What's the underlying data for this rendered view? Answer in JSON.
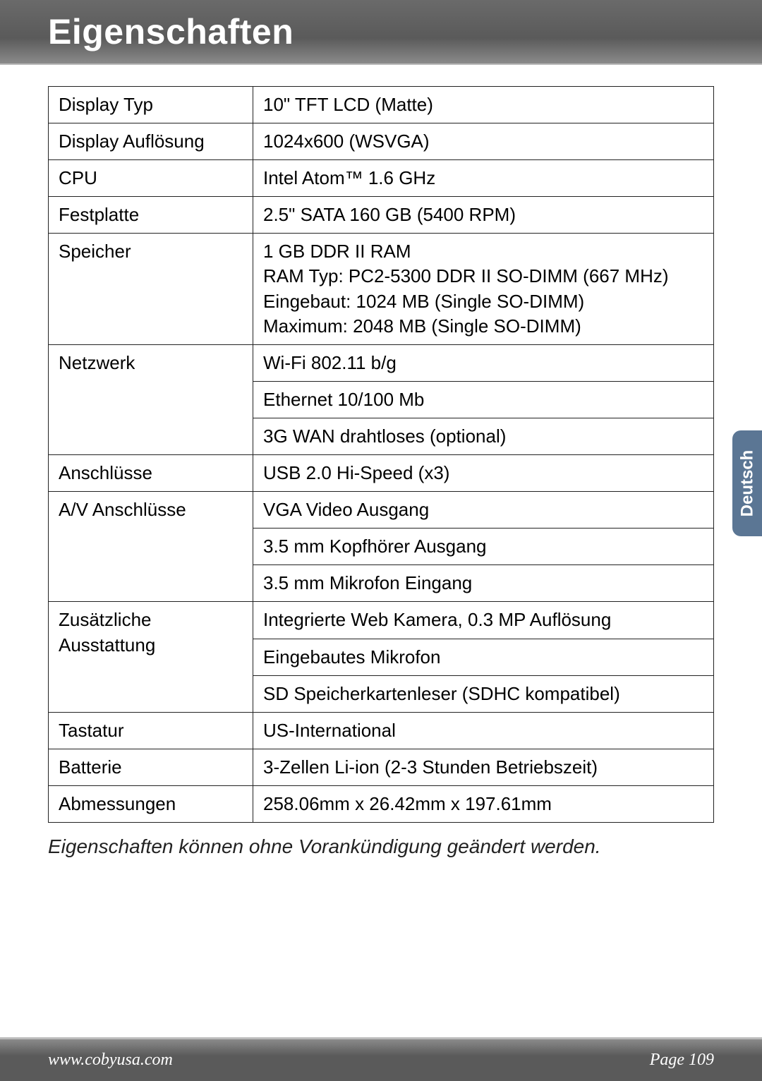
{
  "header": {
    "title": "Eigenschaften"
  },
  "sidetab": {
    "label": "Deutsch"
  },
  "spec": {
    "display_typ": {
      "label": "Display Typ",
      "value": "10\" TFT LCD (Matte)"
    },
    "display_aufl": {
      "label": "Display Auflösung",
      "value": "1024x600 (WSVGA)"
    },
    "cpu": {
      "label": "CPU",
      "value": "Intel Atom™ 1.6 GHz"
    },
    "festplatte": {
      "label": "Festplatte",
      "value": "2.5\" SATA 160 GB (5400 RPM)"
    },
    "speicher": {
      "label": "Speicher",
      "l1": "1 GB DDR II RAM",
      "l2": "RAM Typ: PC2-5300 DDR II SO-DIMM (667 MHz)",
      "l3": "Eingebaut: 1024 MB (Single SO-DIMM)",
      "l4": "Maximum: 2048 MB (Single SO-DIMM)"
    },
    "netzwerk": {
      "label": "Netzwerk",
      "v1": "Wi-Fi 802.11 b/g",
      "v2": "Ethernet 10/100 Mb",
      "v3": "3G WAN drahtloses (optional)"
    },
    "anschluesse": {
      "label": "Anschlüsse",
      "value": "USB 2.0 Hi-Speed (x3)"
    },
    "av": {
      "label": "A/V Anschlüsse",
      "v1": "VGA Video Ausgang",
      "v2": "3.5 mm Kopfhörer Ausgang",
      "v3": "3.5 mm Mikrofon Eingang"
    },
    "extras": {
      "label": "Zusätzliche Ausstattung",
      "v1": "Integrierte Web Kamera, 0.3 MP Auflösung",
      "v2": "Eingebautes Mikrofon",
      "v3": "SD Speicherkartenleser (SDHC kompatibel)"
    },
    "tastatur": {
      "label": "Tastatur",
      "value": "US-International"
    },
    "batterie": {
      "label": "Batterie",
      "value": "3-Zellen Li-ion (2-3 Stunden Betriebszeit)"
    },
    "abmessungen": {
      "label": "Abmessungen",
      "value": "258.06mm x 26.42mm x 197.61mm"
    }
  },
  "footnote": "Eigenschaften können ohne Vorankündigung geändert werden.",
  "footer": {
    "url": "www.cobyusa.com",
    "page": "Page 109"
  }
}
